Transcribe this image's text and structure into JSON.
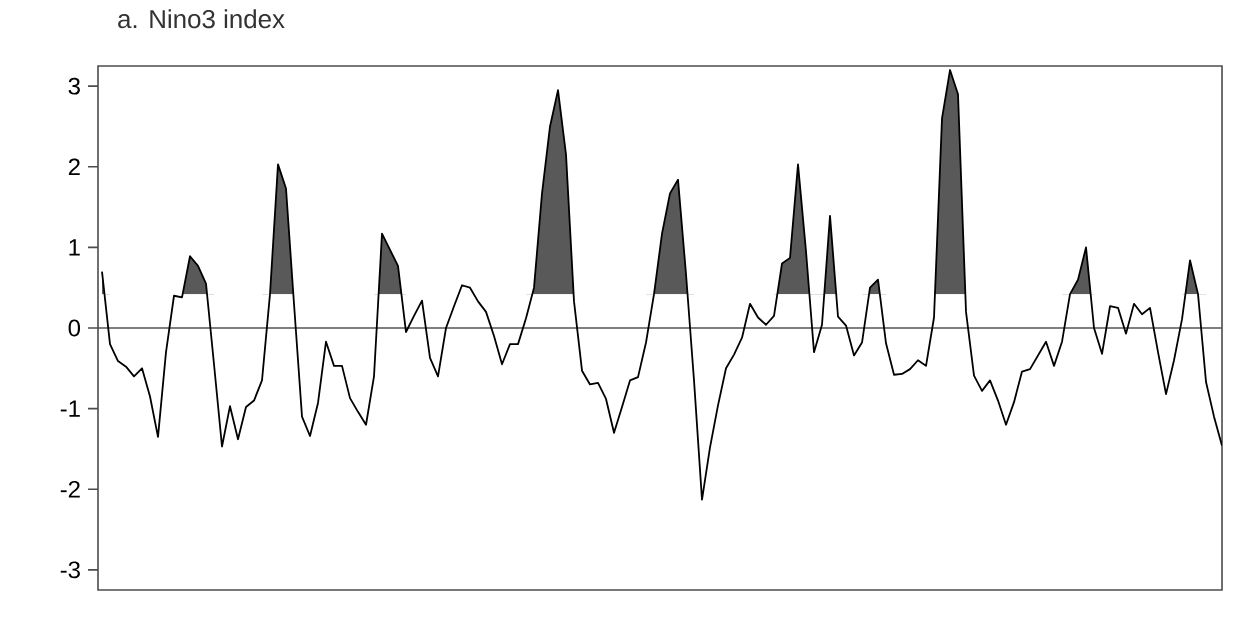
{
  "chart_data": {
    "type": "line",
    "title": "a. Nino3 index",
    "categories": [
      null,
      null,
      null,
      null,
      null,
      null,
      null,
      null,
      null,
      null,
      null,
      null,
      null,
      null,
      null,
      null,
      null,
      null,
      null,
      null,
      null,
      null,
      null,
      null,
      null,
      null,
      null,
      null,
      null,
      null,
      null,
      null,
      null,
      null,
      null,
      null,
      null,
      null,
      null,
      null,
      null,
      null,
      null,
      null,
      null,
      null,
      null,
      null,
      null,
      null,
      null,
      null,
      null,
      null,
      null,
      null,
      null,
      null,
      null,
      null,
      null,
      null,
      null,
      null,
      null,
      null,
      null,
      null,
      null,
      null,
      null,
      null,
      null,
      null,
      null,
      null,
      null,
      null,
      null,
      null,
      null,
      null,
      null,
      null,
      null,
      null,
      null,
      null,
      null,
      null,
      null,
      null,
      null,
      null,
      null,
      null,
      null,
      null,
      null,
      null,
      null,
      null,
      null,
      null,
      null,
      null,
      null,
      null,
      null,
      null,
      null,
      null,
      null,
      null,
      null,
      null,
      null,
      null,
      null,
      null,
      null,
      null,
      null,
      null,
      null,
      null,
      null,
      null,
      null,
      null,
      null,
      null,
      null,
      null,
      null,
      null,
      null,
      null,
      null,
      null,
      null
    ],
    "series": [
      {
        "color": "#000000",
        "values": [
          0.7,
          -0.2,
          -0.41,
          -0.48,
          -0.6,
          -0.5,
          -0.85,
          -1.35,
          -0.3,
          0.4,
          0.38,
          0.89,
          0.77,
          0.55,
          -0.45,
          -1.47,
          -0.97,
          -1.38,
          -0.98,
          -0.9,
          -0.65,
          0.42,
          2.03,
          1.73,
          0.3,
          -1.1,
          -1.34,
          -0.93,
          -0.17,
          -0.47,
          -0.47,
          -0.87,
          -1.04,
          -1.2,
          -0.6,
          1.17,
          0.97,
          0.77,
          -0.05,
          0.15,
          0.34,
          -0.37,
          -0.6,
          0.0,
          0.27,
          0.53,
          0.5,
          0.33,
          0.2,
          -0.1,
          -0.45,
          -0.2,
          -0.2,
          0.12,
          0.5,
          1.67,
          2.5,
          2.95,
          2.15,
          0.33,
          -0.53,
          -0.7,
          -0.68,
          -0.88,
          -1.3,
          -0.98,
          -0.65,
          -0.61,
          -0.18,
          0.42,
          1.17,
          1.67,
          1.84,
          0.67,
          -0.65,
          -2.13,
          -1.48,
          -0.96,
          -0.5,
          -0.33,
          -0.12,
          0.3,
          0.13,
          0.04,
          0.15,
          0.8,
          0.87,
          2.03,
          0.95,
          -0.3,
          0.04,
          1.39,
          0.14,
          0.03,
          -0.34,
          -0.18,
          0.5,
          0.6,
          -0.19,
          -0.58,
          -0.57,
          -0.51,
          -0.4,
          -0.47,
          0.13,
          2.6,
          3.2,
          2.9,
          0.2,
          -0.59,
          -0.78,
          -0.65,
          -0.9,
          -1.2,
          -0.92,
          -0.54,
          -0.51,
          -0.34,
          -0.17,
          -0.47,
          -0.17,
          0.42,
          0.6,
          1.0,
          0.0,
          -0.32,
          0.27,
          0.25,
          -0.07,
          0.3,
          0.17,
          0.25,
          -0.3,
          -0.82,
          -0.4,
          0.11,
          0.84,
          0.42,
          -0.67,
          -1.1,
          -1.46
        ],
        "upper": [
          0.7,
          -0.2,
          null,
          null,
          null,
          null,
          null,
          null,
          null,
          null,
          0.38,
          0.89,
          0.77,
          0.55,
          -0.45,
          null,
          null,
          null,
          null,
          null,
          -0.65,
          0.42,
          2.03,
          1.73,
          0.3,
          null,
          null,
          null,
          null,
          null,
          null,
          null,
          null,
          null,
          -0.6,
          1.17,
          0.97,
          0.77,
          -0.05,
          null,
          null,
          null,
          null,
          null,
          null,
          null,
          null,
          null,
          null,
          null,
          null,
          null,
          null,
          0.12,
          0.5,
          1.67,
          2.5,
          2.95,
          2.15,
          0.33,
          null,
          null,
          null,
          null,
          null,
          null,
          null,
          null,
          -0.18,
          0.42,
          1.17,
          1.67,
          1.84,
          0.67,
          -0.65,
          null,
          null,
          null,
          null,
          null,
          null,
          null,
          null,
          null,
          0.15,
          0.8,
          0.87,
          2.03,
          0.95,
          -0.3,
          0.04,
          1.39,
          0.14,
          null,
          null,
          -0.18,
          0.5,
          0.6,
          -0.19,
          null,
          null,
          null,
          null,
          null,
          0.13,
          2.6,
          3.2,
          2.9,
          0.2,
          null,
          null,
          null,
          null,
          null,
          null,
          null,
          null,
          null,
          null,
          null,
          -0.17,
          0.42,
          0.6,
          1.0,
          0.0,
          null,
          null,
          null,
          null,
          null,
          null,
          null,
          null,
          null,
          null,
          0.11,
          0.84,
          0.42,
          -0.67,
          null,
          null
        ],
        "lower": [
          0.42,
          0.42,
          null,
          null,
          null,
          null,
          null,
          null,
          null,
          null,
          0.42,
          0.42,
          0.42,
          0.42,
          0.42,
          null,
          null,
          null,
          null,
          null,
          0.42,
          0.42,
          0.42,
          0.42,
          0.42,
          null,
          null,
          null,
          null,
          null,
          null,
          null,
          null,
          null,
          0.42,
          0.42,
          0.42,
          0.42,
          0.42,
          null,
          null,
          null,
          null,
          null,
          null,
          null,
          null,
          null,
          null,
          null,
          null,
          null,
          null,
          0.42,
          0.42,
          0.42,
          0.42,
          0.42,
          0.42,
          0.42,
          null,
          null,
          null,
          null,
          null,
          null,
          null,
          null,
          0.42,
          0.42,
          0.42,
          0.42,
          0.42,
          0.42,
          0.42,
          null,
          null,
          null,
          null,
          null,
          null,
          null,
          null,
          null,
          0.42,
          0.42,
          0.42,
          0.42,
          0.42,
          0.42,
          0.42,
          0.42,
          0.42,
          null,
          null,
          0.42,
          0.42,
          0.42,
          0.42,
          null,
          null,
          null,
          null,
          null,
          0.42,
          0.42,
          0.42,
          0.42,
          0.42,
          null,
          null,
          null,
          null,
          null,
          null,
          null,
          null,
          null,
          null,
          null,
          0.42,
          0.42,
          0.42,
          0.42,
          0.42,
          null,
          null,
          null,
          null,
          null,
          null,
          null,
          null,
          null,
          null,
          0.42,
          0.42,
          0.42,
          0.42,
          null,
          null
        ]
      }
    ],
    "ylim": [
      -3.25,
      3.25
    ],
    "yticks": [
      -3,
      -2,
      -1,
      0,
      1,
      2,
      3
    ],
    "tick_labels": "y",
    "ref_lines": [
      {
        "axis": "y",
        "value": 0,
        "color": "#555555"
      }
    ]
  }
}
